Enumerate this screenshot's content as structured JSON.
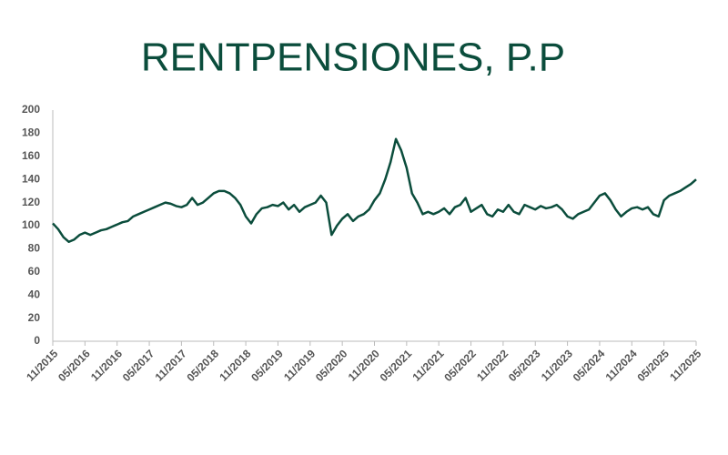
{
  "chart_data": {
    "type": "line",
    "title": "RENTPENSIONES, P.P",
    "categories": [
      "11/2015",
      null,
      null,
      null,
      null,
      null,
      "05/2016",
      null,
      null,
      null,
      null,
      null,
      "11/2016",
      null,
      null,
      null,
      null,
      null,
      "05/2017",
      null,
      null,
      null,
      null,
      null,
      "11/2017",
      null,
      null,
      null,
      null,
      null,
      "05/2018",
      null,
      null,
      null,
      null,
      null,
      "11/2018",
      null,
      null,
      null,
      null,
      null,
      "05/2019",
      null,
      null,
      null,
      null,
      null,
      "11/2019",
      null,
      null,
      null,
      null,
      null,
      "05/2020",
      null,
      null,
      null,
      null,
      null,
      "11/2020",
      null,
      null,
      null,
      null,
      null,
      "05/2021",
      null,
      null,
      null,
      null,
      null,
      "11/2021",
      null,
      null,
      null,
      null,
      null,
      "05/2022",
      null,
      null,
      null,
      null,
      null,
      "11/2022",
      null,
      null,
      null,
      null,
      null,
      "05/2023",
      null,
      null,
      null,
      null,
      null,
      "11/2023",
      null,
      null,
      null,
      null,
      null,
      "05/2024",
      null,
      null,
      null,
      null,
      null,
      "11/2024",
      null,
      null,
      null,
      null,
      null,
      "05/2025",
      null,
      null,
      null,
      null,
      null,
      "11/2025"
    ],
    "values": [
      102,
      97,
      90,
      86,
      88,
      92,
      94,
      92,
      94,
      96,
      97,
      99,
      101,
      103,
      104,
      108,
      110,
      112,
      114,
      116,
      118,
      120,
      119,
      117,
      116,
      118,
      124,
      118,
      120,
      124,
      128,
      130,
      130,
      128,
      124,
      118,
      108,
      102,
      110,
      115,
      116,
      118,
      117,
      120,
      114,
      118,
      112,
      116,
      118,
      120,
      126,
      120,
      92,
      100,
      106,
      110,
      104,
      108,
      110,
      114,
      122,
      128,
      140,
      155,
      175,
      165,
      150,
      128,
      120,
      110,
      112,
      110,
      112,
      115,
      110,
      116,
      118,
      124,
      112,
      115,
      118,
      110,
      108,
      114,
      112,
      118,
      112,
      110,
      118,
      116,
      114,
      117,
      115,
      116,
      118,
      114,
      108,
      106,
      110,
      112,
      114,
      120,
      126,
      128,
      122,
      114,
      108,
      112,
      115,
      116,
      114,
      116,
      110,
      108,
      122,
      126,
      128,
      130,
      133,
      136,
      140
    ],
    "color": "#0b4d3c",
    "ylim": [
      0,
      200
    ],
    "yticks": [
      0,
      20,
      40,
      60,
      80,
      100,
      120,
      140,
      160,
      180,
      200
    ],
    "grid": false
  }
}
